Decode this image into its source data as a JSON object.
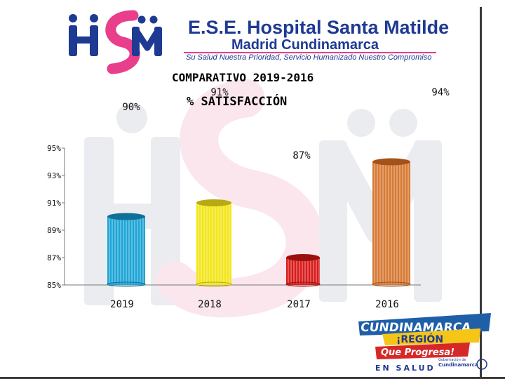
{
  "header": {
    "title": "E.S.E. Hospital Santa Matilde",
    "subtitle": "Madrid Cundinamarca",
    "slogan": "Su Salud Nuestra Prioridad, Servicio Humanizado Nuestro Compromiso",
    "logo_text": "HSM"
  },
  "colors": {
    "brand_blue": "#1f3a93",
    "brand_pink": "#e83e8c",
    "frame": "#3a3a3a"
  },
  "chart_data": {
    "type": "bar",
    "title": "COMPARATIVO 2019-2016",
    "subtitle": "% SATISFACCIÓN",
    "categories": [
      "2019",
      "2018",
      "2017",
      "2016"
    ],
    "values": [
      90,
      91,
      87,
      94
    ],
    "value_labels": [
      "90%",
      "91%",
      "87%",
      "94%"
    ],
    "bar_colors": [
      "#1ea5d6",
      "#f2e61a",
      "#d91c1c",
      "#d87a35"
    ],
    "bar_top_colors": [
      "#106f99",
      "#b9a912",
      "#9c0f0f",
      "#a4521c"
    ],
    "ylim": [
      85,
      95
    ],
    "yticks": [
      85,
      87,
      89,
      91,
      93,
      95
    ],
    "ytick_labels": [
      "85%",
      "87%",
      "89%",
      "91%",
      "93%",
      "95%"
    ],
    "grid": false,
    "legend": "none",
    "xlabel": "",
    "ylabel": ""
  },
  "badge": {
    "line1": "CUNDINAMARCA",
    "line2": "¡REGIÓN",
    "line3": "Que Progresa!",
    "line4": "EN SALUD",
    "small_org": "Gobernación de",
    "small_org2": "Cundinamarca"
  }
}
